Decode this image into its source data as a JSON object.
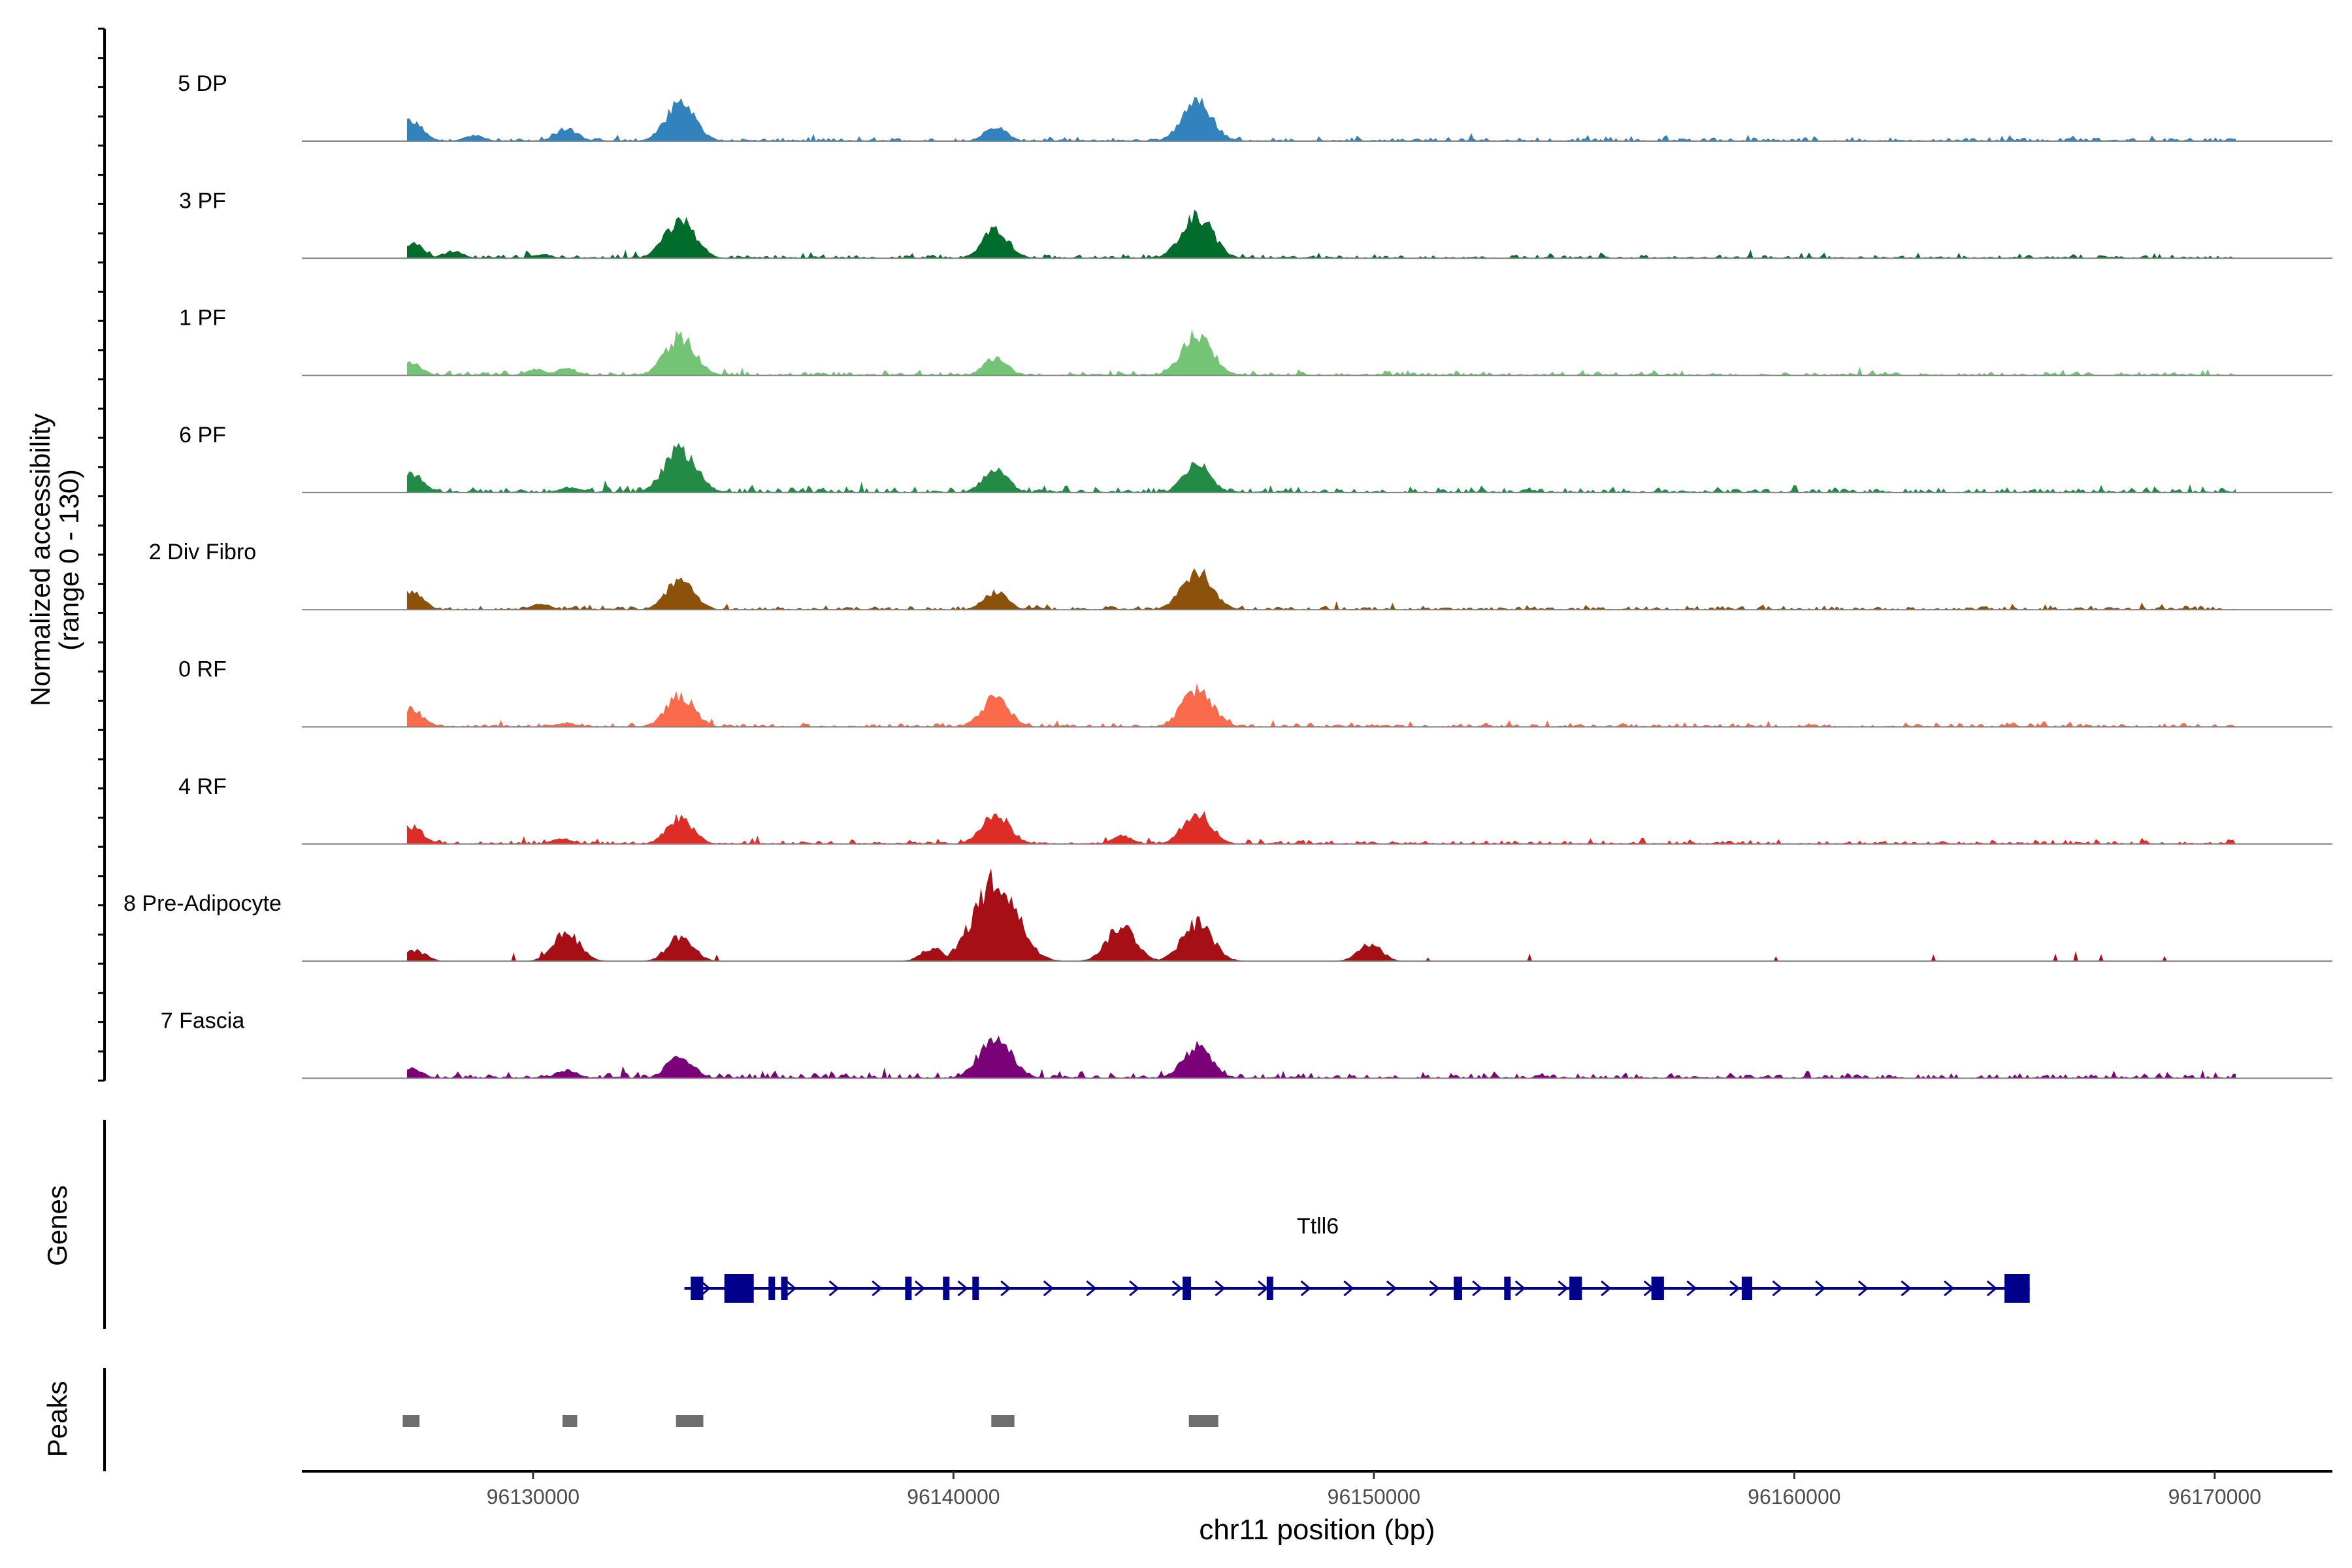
{
  "chart_data": {
    "type": "area",
    "title": "",
    "xlabel": "chr11 position (bp)",
    "ylabel_line1": "Normalized accessibility",
    "ylabel_line2": "(range 0 - 130)",
    "xlim": [
      96124500,
      96172800
    ],
    "data_range": [
      96127000,
      96170500
    ],
    "ylim": [
      0,
      130
    ],
    "x_ticks": [
      96130000,
      96140000,
      96150000,
      96160000,
      96170000
    ],
    "x_tick_labels": [
      "96130000",
      "96140000",
      "96150000",
      "96160000",
      "96170000"
    ],
    "tracks": [
      {
        "name": "5 DP",
        "color": "#3182bd",
        "baseline": 3,
        "peaks": [
          [
            96127100,
            28
          ],
          [
            96128600,
            8
          ],
          [
            96130800,
            18
          ],
          [
            96133500,
            53
          ],
          [
            96141000,
            20
          ],
          [
            96145800,
            55
          ]
        ]
      },
      {
        "name": "3 PF",
        "color": "#006d2c",
        "baseline": 3,
        "peaks": [
          [
            96127100,
            22
          ],
          [
            96128100,
            10
          ],
          [
            96130200,
            6
          ],
          [
            96133500,
            55
          ],
          [
            96141000,
            40
          ],
          [
            96145800,
            60
          ]
        ]
      },
      {
        "name": "1 PF",
        "color": "#74c476",
        "baseline": 3,
        "peaks": [
          [
            96127100,
            18
          ],
          [
            96130100,
            9
          ],
          [
            96130800,
            10
          ],
          [
            96133500,
            55
          ],
          [
            96141000,
            25
          ],
          [
            96145800,
            58
          ]
        ]
      },
      {
        "name": "6 PF",
        "color": "#238b45",
        "baseline": 4,
        "peaks": [
          [
            96127100,
            28
          ],
          [
            96130900,
            8
          ],
          [
            96133500,
            62
          ],
          [
            96141000,
            32
          ],
          [
            96145800,
            40
          ]
        ]
      },
      {
        "name": "2 Div Fibro",
        "color": "#8c510a",
        "baseline": 3,
        "peaks": [
          [
            96127100,
            25
          ],
          [
            96130200,
            8
          ],
          [
            96133500,
            43
          ],
          [
            96141000,
            25
          ],
          [
            96145800,
            55
          ]
        ]
      },
      {
        "name": "0 RF",
        "color": "#fb6a4a",
        "baseline": 3,
        "peaks": [
          [
            96127100,
            25
          ],
          [
            96130800,
            6
          ],
          [
            96133500,
            45
          ],
          [
            96141000,
            42
          ],
          [
            96145800,
            55
          ]
        ]
      },
      {
        "name": "4 RF",
        "color": "#de2d26",
        "baseline": 3,
        "peaks": [
          [
            96127100,
            25
          ],
          [
            96130700,
            8
          ],
          [
            96133500,
            38
          ],
          [
            96141000,
            45
          ],
          [
            96144000,
            12
          ],
          [
            96145800,
            45
          ]
        ]
      },
      {
        "name": "8 Pre-Adipocyte",
        "color": "#a50f15",
        "baseline": 0,
        "peaks": [
          [
            96127200,
            15
          ],
          [
            96130800,
            40
          ],
          [
            96133500,
            35
          ],
          [
            96139500,
            18
          ],
          [
            96141000,
            115
          ],
          [
            96144000,
            50
          ],
          [
            96145800,
            55
          ],
          [
            96149900,
            25
          ]
        ]
      },
      {
        "name": "7 Fascia",
        "color": "#7a0177",
        "baseline": 4,
        "peaks": [
          [
            96127100,
            15
          ],
          [
            96130800,
            12
          ],
          [
            96133500,
            33
          ],
          [
            96141000,
            62
          ],
          [
            96145800,
            47
          ]
        ]
      }
    ],
    "genes_track_label": "Genes",
    "gene": {
      "name": "Ttll6",
      "start": 96133600,
      "end": 96165600,
      "strand": "+",
      "exons": [
        [
          96133750,
          96134050
        ],
        [
          96134550,
          96135250
        ],
        [
          96135600,
          96135750
        ],
        [
          96135900,
          96136050
        ],
        [
          96138850,
          96139000
        ],
        [
          96139750,
          96139850
        ],
        [
          96140450,
          96140550
        ],
        [
          96145450,
          96145650
        ],
        [
          96147450,
          96147600
        ],
        [
          96151900,
          96152100
        ],
        [
          96153100,
          96153250
        ],
        [
          96154650,
          96154950
        ],
        [
          96156600,
          96156900
        ],
        [
          96158750,
          96159000
        ],
        [
          96165000,
          96165600
        ]
      ]
    },
    "peaks_track_label": "Peaks",
    "called_peaks": [
      [
        96126900,
        96127300
      ],
      [
        96130700,
        96131050
      ],
      [
        96133400,
        96134050
      ],
      [
        96140900,
        96141450
      ],
      [
        96145600,
        96146300
      ]
    ]
  }
}
